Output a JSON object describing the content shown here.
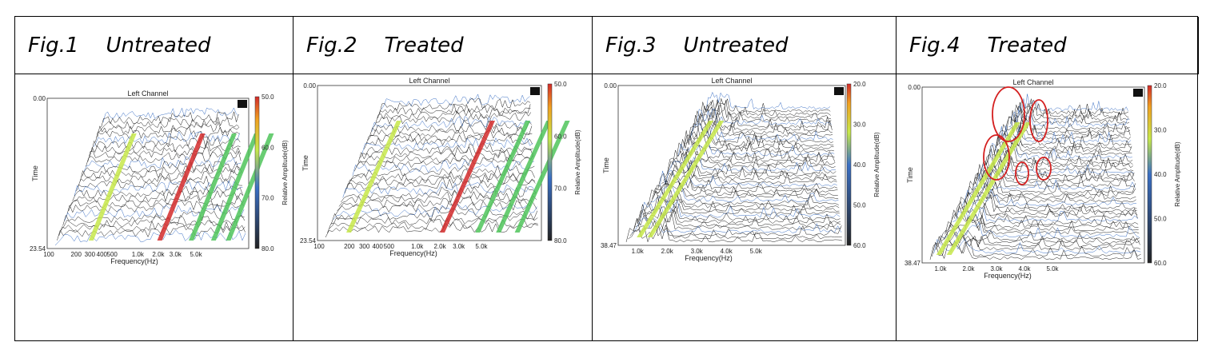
{
  "figures": [
    {
      "id": "Fig.1",
      "title": "Untreated"
    },
    {
      "id": "Fig.2",
      "title": "Treated"
    },
    {
      "id": "Fig.3",
      "title": "Untreated"
    },
    {
      "id": "Fig.4",
      "title": "Treated"
    }
  ],
  "colors": {
    "yellow_green": "#c7e84a",
    "blue": "#3a6fc4",
    "red": "#d22a2a",
    "green": "#4fc45a",
    "ink": "#1a1a1a",
    "annotation_red": "#d42020"
  },
  "chart_data": [
    {
      "type": "waterfall",
      "title": "Left Channel",
      "xlabel": "Frequency(Hz)",
      "ylabel": "Time",
      "zlabel": "Relative Amplitude(dB)",
      "time_range": [
        "0.00",
        "23.54"
      ],
      "x_ticks": [
        "100",
        "200",
        "300",
        "400",
        "500",
        "1.0k",
        "2.0k",
        "3.0k",
        "5.0k"
      ],
      "colorbar_ticks": [
        "50.0",
        "60.0",
        "70.0",
        "80.0"
      ]
    },
    {
      "type": "waterfall",
      "title": "Left Channel",
      "xlabel": "Frequency(Hz)",
      "ylabel": "Time",
      "zlabel": "Relative Amplitude(dB)",
      "time_range": [
        "0.00",
        "23.54"
      ],
      "x_ticks": [
        "100",
        "200",
        "300",
        "400",
        "500",
        "1.0k",
        "2.0k",
        "3.0k",
        "5.0k"
      ],
      "colorbar_ticks": [
        "50.0",
        "60.0",
        "70.0",
        "80.0"
      ]
    },
    {
      "type": "waterfall",
      "title": "Left Channel",
      "xlabel": "Frequency(Hz)",
      "ylabel": "Time",
      "zlabel": "Relative Amplitude(dB)",
      "time_range": [
        "0.00",
        "38.47"
      ],
      "x_ticks": [
        "1.0k",
        "2.0k",
        "3.0k",
        "4.0k",
        "5.0k"
      ],
      "colorbar_ticks": [
        "20.0",
        "30.0",
        "40.0",
        "50.0",
        "60.0"
      ]
    },
    {
      "type": "waterfall",
      "title": "Left Channel",
      "xlabel": "Frequency(Hz)",
      "ylabel": "Time",
      "zlabel": "Relative Amplitude(dB)",
      "time_range": [
        "0.00",
        "38.47"
      ],
      "x_ticks": [
        "1.0k",
        "2.0k",
        "3.0k",
        "4.0k",
        "5.0k"
      ],
      "colorbar_ticks": [
        "20.0",
        "30.0",
        "40.0",
        "50.0",
        "60.0"
      ],
      "annotations": [
        "red ellipse",
        "red ellipse",
        "red ellipse",
        "red ellipse",
        "red ellipse"
      ]
    }
  ]
}
